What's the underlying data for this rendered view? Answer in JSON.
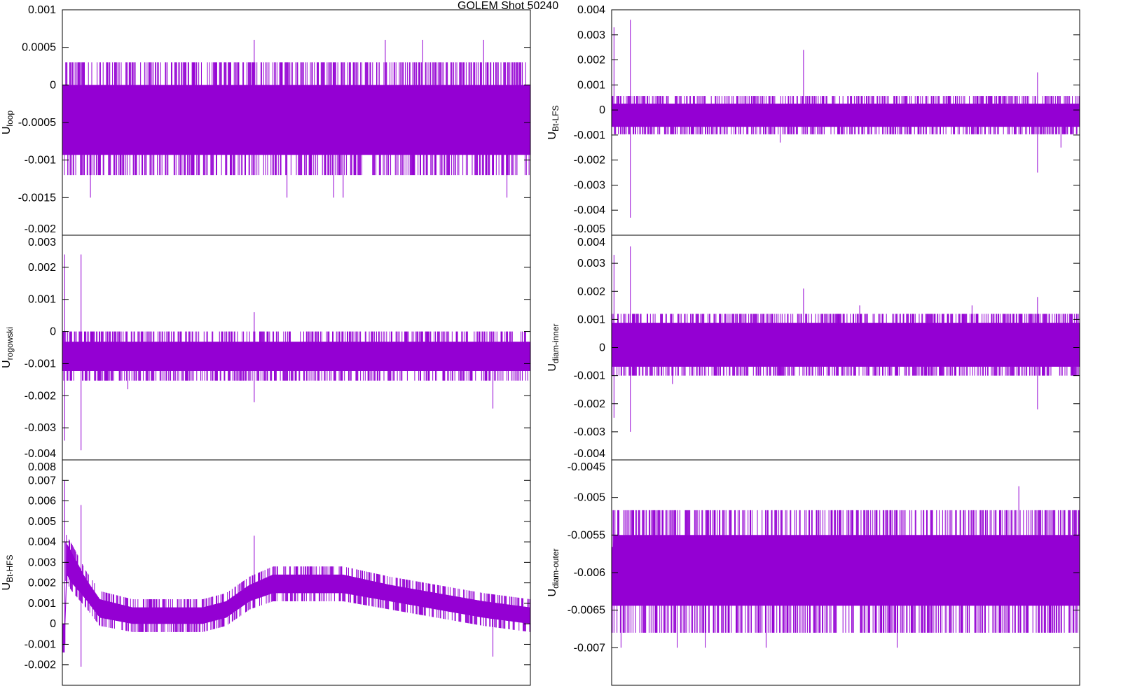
{
  "title": "GOLEM Shot 50240",
  "colors": {
    "trace": "#9400d3",
    "axis": "#000000"
  },
  "chart_data": [
    {
      "type": "line",
      "id": "uloop",
      "ylabel": "U",
      "ylabel_sub": "loop",
      "ylim": [
        -0.002,
        0.001
      ],
      "ticks": [
        {
          "v": 0.001,
          "label": "0.001"
        },
        {
          "v": 0.0005,
          "label": "0.0005"
        },
        {
          "v": 0,
          "label": "0"
        },
        {
          "v": -0.0005,
          "label": "-0.0005"
        },
        {
          "v": -0.001,
          "label": "-0.001"
        },
        {
          "v": -0.0015,
          "label": "-0.0015"
        },
        {
          "v": -0.002,
          "label": "-0.002"
        }
      ],
      "core": [
        [
          0,
          -0.00093,
          0
        ],
        [
          100,
          -0.00093,
          0
        ]
      ],
      "outer": [
        -0.0012,
        0.0003
      ],
      "spikes": [
        [
          41,
          0.0006
        ],
        [
          69,
          0.0006
        ],
        [
          77,
          0.0006
        ],
        [
          90,
          0.0006
        ],
        [
          6,
          -0.0015
        ],
        [
          48,
          -0.0015
        ],
        [
          58,
          -0.0015
        ],
        [
          60,
          -0.0015
        ],
        [
          95,
          -0.0015
        ],
        [
          0,
          -0.0012
        ],
        [
          43,
          -0.0006
        ]
      ]
    },
    {
      "type": "line",
      "id": "urogowski",
      "ylabel": "U",
      "ylabel_sub": "rogowski",
      "ylim": [
        -0.004,
        0.003
      ],
      "ticks": [
        {
          "v": 0.003,
          "label": "0.003"
        },
        {
          "v": 0.002,
          "label": "0.002"
        },
        {
          "v": 0.001,
          "label": "0.001"
        },
        {
          "v": 0,
          "label": "0"
        },
        {
          "v": -0.001,
          "label": "-0.001"
        },
        {
          "v": -0.002,
          "label": "-0.002"
        },
        {
          "v": -0.003,
          "label": "-0.003"
        },
        {
          "v": -0.004,
          "label": "-0.004"
        }
      ],
      "core": [
        [
          0,
          -0.00123,
          -0.00032
        ],
        [
          100,
          -0.00123,
          -0.00032
        ]
      ],
      "outer": [
        -0.00153,
        0
      ],
      "spikes": [
        [
          0.5,
          0.0024
        ],
        [
          0.5,
          -0.0034
        ],
        [
          4,
          0.0024
        ],
        [
          4,
          -0.0037
        ],
        [
          41,
          0.0006
        ],
        [
          41,
          -0.0022
        ],
        [
          92,
          -0.0024
        ],
        [
          14,
          -0.0018
        ],
        [
          100,
          0.0003
        ]
      ]
    },
    {
      "type": "line",
      "id": "ubt-hfs",
      "ylabel": "U",
      "ylabel_sub": "Bt-HFS",
      "ylim": [
        -0.003,
        0.008
      ],
      "ticks": [
        {
          "v": 0.008,
          "label": "0.008"
        },
        {
          "v": 0.007,
          "label": "0.007"
        },
        {
          "v": 0.006,
          "label": "0.006"
        },
        {
          "v": 0.005,
          "label": "0.005"
        },
        {
          "v": 0.004,
          "label": "0.004"
        },
        {
          "v": 0.003,
          "label": "0.003"
        },
        {
          "v": 0.002,
          "label": "0.002"
        },
        {
          "v": 0.001,
          "label": "0.001"
        },
        {
          "v": 0,
          "label": "0"
        },
        {
          "v": -0.001,
          "label": "-0.001"
        },
        {
          "v": -0.002,
          "label": "-0.002"
        }
      ],
      "core": [
        [
          0,
          -0.001,
          0
        ],
        [
          0.6,
          -0.001,
          0
        ],
        [
          0.7,
          0.0025,
          0.004
        ],
        [
          2,
          0.002,
          0.0035
        ],
        [
          5,
          0.0012,
          0.0022
        ],
        [
          8,
          0.0003,
          0.0012
        ],
        [
          15,
          0,
          0.0008
        ],
        [
          30,
          0,
          0.0008
        ],
        [
          35,
          0.0003,
          0.0011
        ],
        [
          40,
          0.0011,
          0.0019
        ],
        [
          45,
          0.0015,
          0.0024
        ],
        [
          60,
          0.0015,
          0.0024
        ],
        [
          70,
          0.0011,
          0.0019
        ],
        [
          80,
          0.0007,
          0.0015
        ],
        [
          90,
          0.0003,
          0.0011
        ],
        [
          100,
          0,
          0.0008
        ]
      ],
      "outer_pad": 0.0004,
      "spikes": [
        [
          0.5,
          0.007
        ],
        [
          0.5,
          -0.001
        ],
        [
          4,
          0.0058
        ],
        [
          4,
          -0.0021
        ],
        [
          41,
          0.0043
        ],
        [
          92,
          -0.0016
        ],
        [
          92,
          0.0011
        ]
      ]
    },
    {
      "type": "line",
      "id": "ubt-lfs",
      "ylabel": "U",
      "ylabel_sub": "Bt-LFS",
      "ylim": [
        -0.005,
        0.004
      ],
      "ticks": [
        {
          "v": 0.004,
          "label": "0.004"
        },
        {
          "v": 0.003,
          "label": "0.003"
        },
        {
          "v": 0.002,
          "label": "0.002"
        },
        {
          "v": 0.001,
          "label": "0.001"
        },
        {
          "v": 0,
          "label": "0"
        },
        {
          "v": -0.001,
          "label": "-0.001"
        },
        {
          "v": -0.002,
          "label": "-0.002"
        },
        {
          "v": -0.003,
          "label": "-0.003"
        },
        {
          "v": -0.004,
          "label": "-0.004"
        },
        {
          "v": -0.005,
          "label": "-0.005"
        }
      ],
      "core": [
        [
          0,
          -0.00067,
          0.00025
        ],
        [
          100,
          -0.00067,
          0.00025
        ]
      ],
      "outer": [
        -0.00097,
        0.00056
      ],
      "spikes": [
        [
          0.5,
          0.0033
        ],
        [
          4,
          0.0036
        ],
        [
          4,
          -0.0043
        ],
        [
          41,
          0.0024
        ],
        [
          91,
          0.0015
        ],
        [
          91,
          -0.0025
        ],
        [
          96,
          -0.0015
        ],
        [
          0,
          -0.001
        ],
        [
          36,
          -0.0013
        ]
      ]
    },
    {
      "type": "line",
      "id": "udiam-inner",
      "ylabel": "U",
      "ylabel_sub": "diam-inner",
      "ylim": [
        -0.004,
        0.004
      ],
      "ticks": [
        {
          "v": 0.004,
          "label": "0.004"
        },
        {
          "v": 0.003,
          "label": "0.003"
        },
        {
          "v": 0.002,
          "label": "0.002"
        },
        {
          "v": 0.001,
          "label": "0.001"
        },
        {
          "v": 0,
          "label": "0"
        },
        {
          "v": -0.001,
          "label": "-0.001"
        },
        {
          "v": -0.002,
          "label": "-0.002"
        },
        {
          "v": -0.003,
          "label": "-0.003"
        },
        {
          "v": -0.004,
          "label": "-0.004"
        }
      ],
      "core": [
        [
          0,
          -0.00068,
          0.00088
        ],
        [
          100,
          -0.00068,
          0.00088
        ]
      ],
      "outer": [
        -0.001,
        0.0012
      ],
      "spikes": [
        [
          0.5,
          0.0033
        ],
        [
          0.5,
          -0.0025
        ],
        [
          4,
          0.0036
        ],
        [
          4,
          -0.003
        ],
        [
          41,
          0.0021
        ],
        [
          91,
          0.0018
        ],
        [
          91,
          -0.0022
        ],
        [
          13,
          -0.0013
        ],
        [
          53,
          0.0015
        ],
        [
          77,
          0.0015
        ]
      ]
    },
    {
      "type": "line",
      "id": "udiam-outer",
      "ylabel": "U",
      "ylabel_sub": "diam-outer",
      "ylim": [
        -0.0075,
        -0.0045
      ],
      "ticks": [
        {
          "v": -0.0045,
          "label": "-0.0045"
        },
        {
          "v": -0.005,
          "label": "-0.005"
        },
        {
          "v": -0.0055,
          "label": "-0.0055"
        },
        {
          "v": -0.006,
          "label": "-0.006"
        },
        {
          "v": -0.0065,
          "label": "-0.0065"
        },
        {
          "v": -0.007,
          "label": "-0.007"
        }
      ],
      "core": [
        [
          0,
          -0.00644,
          -0.0058
        ],
        [
          0.3,
          -0.00644,
          -0.0055
        ],
        [
          100,
          -0.00644,
          -0.0055
        ]
      ],
      "outer": [
        -0.0068,
        -0.00517
      ],
      "spikes": [
        [
          87,
          -0.00485
        ],
        [
          2,
          -0.007
        ],
        [
          14,
          -0.007
        ],
        [
          20,
          -0.007
        ],
        [
          33,
          -0.007
        ],
        [
          61,
          -0.007
        ],
        [
          0.5,
          -0.0068
        ]
      ]
    }
  ]
}
